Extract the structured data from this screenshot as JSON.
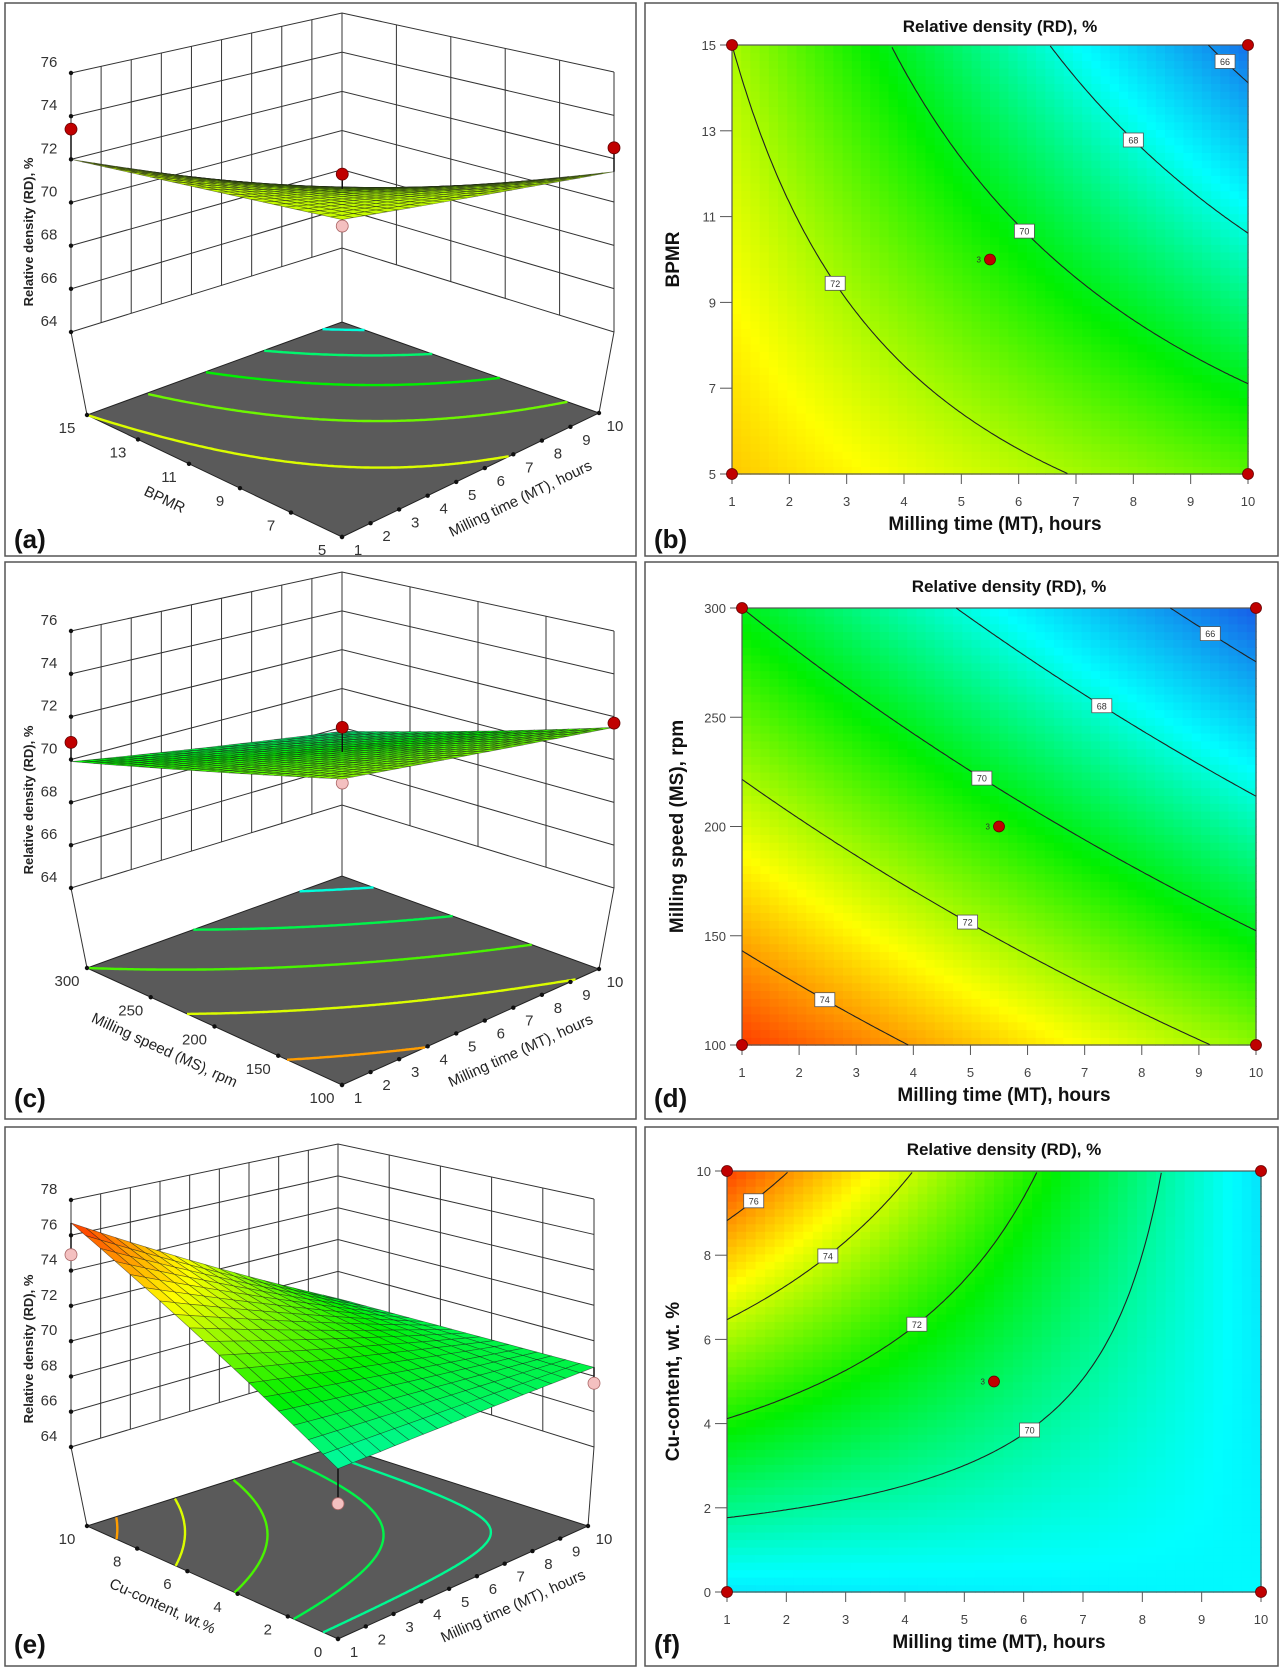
{
  "figure": {
    "panel_labels": [
      "(a)",
      "(b)",
      "(c)",
      "(d)",
      "(e)",
      "(f)"
    ],
    "colorscale": [
      "#1a50e6",
      "#00ffff",
      "#00f000",
      "#ffff00",
      "#ff1a00"
    ],
    "colors": {
      "design_point": "#c00000",
      "design_point_below": "#f4c0c0",
      "floor": "#5a5a5a",
      "contour_line": "#222222"
    }
  },
  "chart_data": [
    {
      "panel_label": "(a)",
      "type": "surface3d",
      "zlabel": "Relative density (RD), %",
      "x1label": "Milling time (MT), hours",
      "x2label": "BPMR",
      "x1range": [
        1,
        10
      ],
      "x2range": [
        5,
        15
      ],
      "x1ticks": [
        1,
        2,
        3,
        4,
        5,
        6,
        7,
        8,
        9,
        10
      ],
      "x2ticks": [
        5,
        7,
        9,
        11,
        13,
        15
      ],
      "zlim": [
        64,
        76
      ],
      "zticks": [
        64,
        66,
        68,
        70,
        72,
        74,
        76
      ],
      "surface_estimates": [
        {
          "x1": 1,
          "x2": 5,
          "z": 72.3
        },
        {
          "x1": 1,
          "x2": 15,
          "z": 72.0
        },
        {
          "x1": 10,
          "x2": 5,
          "z": 71.4
        },
        {
          "x1": 10,
          "x2": 15,
          "z": 66.8
        }
      ],
      "surface_color_range": [
        50,
        82
      ],
      "floor_contour_levels": [
        66,
        67.5,
        69,
        70.5,
        72
      ],
      "floor_color_range": [
        62,
        76
      ],
      "design_points": [
        {
          "x1": 1,
          "x2": 15,
          "z": 73.4,
          "position": "above"
        },
        {
          "x1": 10,
          "x2": 5,
          "z": 72.5,
          "position": "above"
        },
        {
          "x1": 5.5,
          "x2": 10,
          "z": 71.3,
          "position": "above"
        },
        {
          "x1": 5.5,
          "x2": 10,
          "z": 68.9,
          "position": "below"
        }
      ]
    },
    {
      "panel_label": "(b)",
      "type": "contour",
      "title": "Relative density (RD), %",
      "xlabel": "Milling time (MT), hours",
      "ylabel": "BPMR",
      "xlim": [
        1,
        10
      ],
      "ylim": [
        5,
        15
      ],
      "xticks": [
        1,
        2,
        3,
        4,
        5,
        6,
        7,
        8,
        9,
        10
      ],
      "yticks": [
        5,
        7,
        9,
        11,
        13,
        15
      ],
      "contour_levels": [
        66,
        68,
        70,
        72
      ],
      "response_estimates": [
        {
          "x": 1,
          "y": 5,
          "z": 73.5
        },
        {
          "x": 1,
          "y": 15,
          "z": 72.0
        },
        {
          "x": 10,
          "y": 5,
          "z": 71.2
        },
        {
          "x": 10,
          "y": 15,
          "z": 65.5
        }
      ],
      "color_range": [
        65,
        75.5
      ],
      "design_points": [
        {
          "x": 1,
          "y": 5
        },
        {
          "x": 1,
          "y": 15
        },
        {
          "x": 10,
          "y": 5
        },
        {
          "x": 10,
          "y": 15
        },
        {
          "x": 5.5,
          "y": 10,
          "replicates": "3"
        }
      ]
    },
    {
      "panel_label": "(c)",
      "type": "surface3d",
      "zlabel": "Relative density (RD), %",
      "x1label": "Milling time (MT), hours",
      "x2label": "Milling speed (MS), rpm",
      "x1range": [
        1,
        10
      ],
      "x2range": [
        100,
        300
      ],
      "x1ticks": [
        1,
        2,
        3,
        4,
        5,
        6,
        7,
        8,
        9,
        10
      ],
      "x2ticks": [
        100,
        150,
        200,
        250,
        300
      ],
      "zlim": [
        64,
        76
      ],
      "zticks": [
        64,
        66,
        68,
        70,
        72,
        74,
        76
      ],
      "surface_estimates": [
        {
          "x1": 1,
          "x2": 100,
          "z": 72.2
        },
        {
          "x1": 1,
          "x2": 300,
          "z": 69.9
        },
        {
          "x1": 10,
          "x2": 100,
          "z": 71.5
        },
        {
          "x1": 10,
          "x2": 300,
          "z": 67.8
        }
      ],
      "surface_color_range": [
        62,
        78
      ],
      "floor_contour_levels": [
        66,
        68,
        70,
        72,
        74
      ],
      "floor_color_range": [
        62,
        76
      ],
      "design_points": [
        {
          "x1": 1,
          "x2": 300,
          "z": 70.8,
          "position": "above"
        },
        {
          "x1": 10,
          "x2": 100,
          "z": 71.7,
          "position": "above"
        },
        {
          "x1": 5.5,
          "x2": 200,
          "z": 71.5,
          "position": "above"
        },
        {
          "x1": 5.5,
          "x2": 200,
          "z": 69.5,
          "position": "below"
        },
        {
          "x1": 5.5,
          "x2": 200,
          "z": 68.9,
          "position": "below"
        }
      ]
    },
    {
      "panel_label": "(d)",
      "type": "contour",
      "title": "Relative density (RD), %",
      "xlabel": "Milling time (MT), hours",
      "ylabel": "Milling speed (MS), rpm",
      "xlim": [
        1,
        10
      ],
      "ylim": [
        100,
        300
      ],
      "xticks": [
        1,
        2,
        3,
        4,
        5,
        6,
        7,
        8,
        9,
        10
      ],
      "yticks": [
        100,
        150,
        200,
        250,
        300
      ],
      "contour_levels": [
        66,
        68,
        70,
        72,
        74
      ],
      "response_estimates": [
        {
          "x": 1,
          "y": 100,
          "z": 75.1
        },
        {
          "x": 1,
          "y": 300,
          "z": 70.0
        },
        {
          "x": 10,
          "y": 100,
          "z": 71.7
        },
        {
          "x": 10,
          "y": 300,
          "z": 65.2
        }
      ],
      "color_range": [
        65,
        75.5
      ],
      "design_points": [
        {
          "x": 1,
          "y": 100
        },
        {
          "x": 1,
          "y": 300
        },
        {
          "x": 10,
          "y": 100
        },
        {
          "x": 10,
          "y": 300
        },
        {
          "x": 5.5,
          "y": 200,
          "replicates": "3"
        }
      ]
    },
    {
      "panel_label": "(e)",
      "type": "surface3d",
      "zlabel": "Relative density (RD), %",
      "x1label": "Milling time (MT), hours",
      "x2label": "Cu-content, wt.%",
      "x1range": [
        1,
        10
      ],
      "x2range": [
        0,
        10
      ],
      "x1ticks": [
        1,
        2,
        3,
        4,
        5,
        6,
        7,
        8,
        9,
        10
      ],
      "x2ticks": [
        0,
        2,
        4,
        6,
        8,
        10
      ],
      "zlim": [
        64,
        78
      ],
      "zticks": [
        64,
        66,
        68,
        70,
        72,
        74,
        76,
        78
      ],
      "surface_estimates": [
        {
          "x1": 1,
          "x2": 0,
          "z": 67.0
        },
        {
          "x1": 1,
          "x2": 10,
          "z": 76.7
        },
        {
          "x1": 10,
          "x2": 0,
          "z": 68.5
        },
        {
          "x1": 10,
          "x2": 10,
          "z": 68.3
        }
      ],
      "surface_color_range": [
        62,
        77
      ],
      "floor_contour_levels": [
        76,
        74,
        72,
        70,
        69
      ],
      "floor_color_range": [
        64,
        78
      ],
      "design_points": [
        {
          "x1": 1,
          "x2": 10,
          "z": 74.9,
          "position": "below"
        },
        {
          "x1": 10,
          "x2": 0,
          "z": 67.6,
          "position": "below"
        },
        {
          "x1": 1,
          "x2": 0,
          "z": 65.2,
          "position": "below"
        }
      ]
    },
    {
      "panel_label": "(f)",
      "type": "contour",
      "title": "Relative density (RD), %",
      "xlabel": "Milling time (MT), hours",
      "ylabel": "Cu-content, wt. %",
      "xlim": [
        1,
        10
      ],
      "ylim": [
        0,
        10
      ],
      "xticks": [
        1,
        2,
        3,
        4,
        5,
        6,
        7,
        8,
        9,
        10
      ],
      "yticks": [
        0,
        2,
        4,
        6,
        8,
        10
      ],
      "contour_levels": [
        70,
        72,
        74,
        76
      ],
      "response_estimates": [
        {
          "x": 1,
          "y": 0,
          "z": 68.5
        },
        {
          "x": 1,
          "y": 10,
          "z": 77.0
        },
        {
          "x": 10,
          "y": 0,
          "z": 68.8
        },
        {
          "x": 10,
          "y": 10,
          "z": 68.4
        }
      ],
      "color_range": [
        66,
        77.5
      ],
      "design_points": [
        {
          "x": 1,
          "y": 0
        },
        {
          "x": 1,
          "y": 10
        },
        {
          "x": 10,
          "y": 0
        },
        {
          "x": 10,
          "y": 10
        },
        {
          "x": 5.5,
          "y": 5,
          "replicates": "3"
        }
      ]
    }
  ]
}
